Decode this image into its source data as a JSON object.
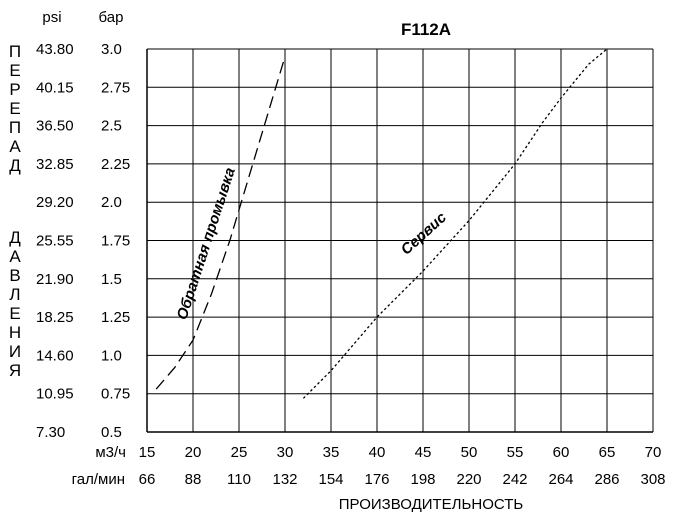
{
  "chart_data": {
    "type": "line",
    "title": "F112A",
    "xlabel": "ПРОИЗВОДИТЕЛЬНОСТЬ",
    "ylabel_letters_top": [
      "П",
      "Е",
      "Р",
      "Е",
      "П",
      "А",
      "Д"
    ],
    "ylabel_letters_bottom": [
      "Д",
      "А",
      "В",
      "Л",
      "Е",
      "Н",
      "И",
      "Я"
    ],
    "x_unit_primary": "м3/ч",
    "x_unit_secondary": "гал/мин",
    "y_unit_primary": "бар",
    "y_unit_secondary": "psi",
    "x_ticks": [
      "15",
      "20",
      "25",
      "30",
      "35",
      "40",
      "45",
      "50",
      "55",
      "60",
      "65",
      "70"
    ],
    "x_ticks_secondary": [
      "66",
      "88",
      "110",
      "132",
      "154",
      "176",
      "198",
      "220",
      "242",
      "264",
      "286",
      "308"
    ],
    "y_ticks": [
      "0.5",
      "0.75",
      "1.0",
      "1.25",
      "1.5",
      "1.75",
      "2.0",
      "2.25",
      "2.5",
      "2.75",
      "3.0"
    ],
    "y_ticks_secondary": [
      "7.30",
      "10.95",
      "14.60",
      "18.25",
      "21.90",
      "25.55",
      "29.20",
      "32.85",
      "36.50",
      "40.15",
      "43.80"
    ],
    "xlim": [
      15,
      70
    ],
    "ylim": [
      0.5,
      3.0
    ],
    "grid": true,
    "series": [
      {
        "name": "Обратная промывка",
        "style": "dashed",
        "x": [
          16,
          18,
          20,
          22,
          24,
          25.5,
          27,
          28.5,
          30
        ],
        "y": [
          0.78,
          0.92,
          1.1,
          1.4,
          1.75,
          2.05,
          2.35,
          2.65,
          2.95
        ]
      },
      {
        "name": "Сервис",
        "style": "dotted",
        "x": [
          32,
          35,
          40,
          45,
          50,
          55,
          58,
          60,
          63,
          65
        ],
        "y": [
          0.72,
          0.9,
          1.25,
          1.55,
          1.88,
          2.25,
          2.52,
          2.68,
          2.9,
          3.0
        ]
      }
    ]
  }
}
